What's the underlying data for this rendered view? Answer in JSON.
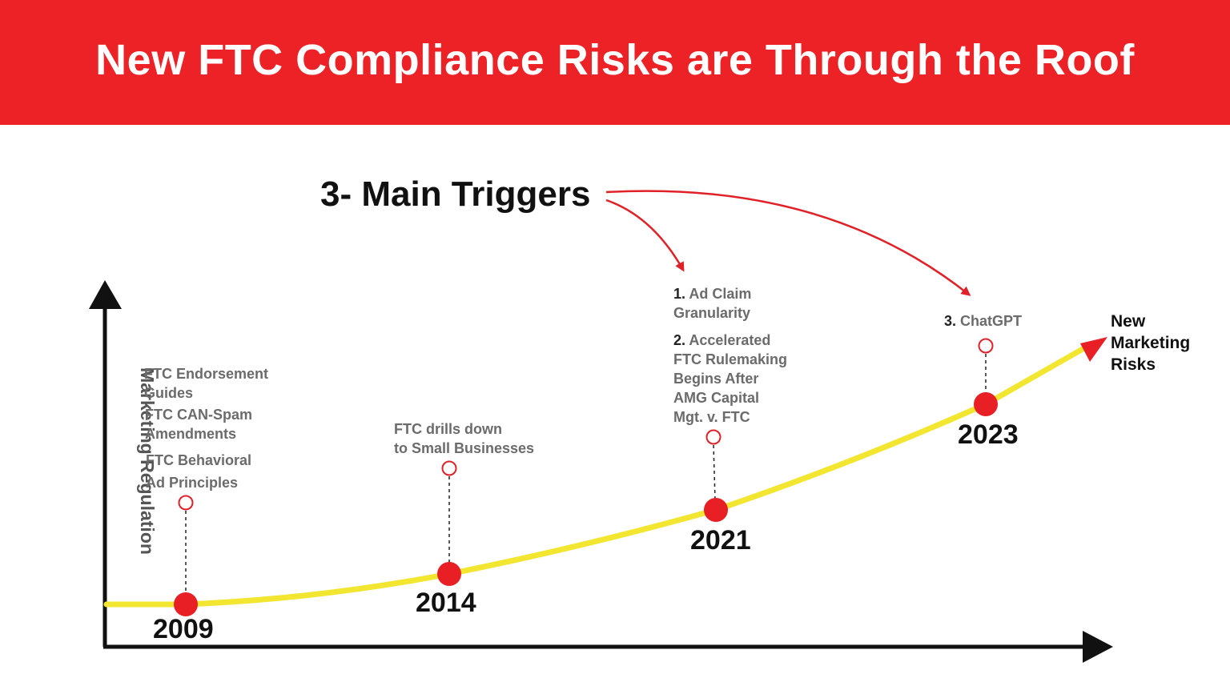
{
  "header": {
    "title": "New FTC Compliance Risks are Through the Roof",
    "color": "#ec2227"
  },
  "triggers": {
    "heading": "3- Main Triggers"
  },
  "y_axis": {
    "label": "Marketing Regulation"
  },
  "curve": {
    "end_label": [
      "New",
      "Marketing",
      "Risks"
    ],
    "color": "#f2e630",
    "marker_color": "#e81f25"
  },
  "milestones": [
    {
      "year": "2009",
      "notes": [
        "FTC Endorsement",
        "Guides",
        "FTC CAN-Spam",
        "Amendments",
        "FTC Behavioral",
        "Ad Principles"
      ]
    },
    {
      "year": "2014",
      "notes": [
        "FTC drills down",
        "to Small Businesses"
      ]
    },
    {
      "year": "2021",
      "notes": [
        {
          "num": "1.",
          "lines": [
            "Ad Claim",
            "Granularity"
          ]
        },
        {
          "num": "2.",
          "lines": [
            "Accelerated",
            "FTC Rulemaking",
            "Begins After",
            "AMG Capital",
            "Mgt. v. FTC"
          ]
        }
      ]
    },
    {
      "year": "2023",
      "notes": [
        {
          "num": "3.",
          "lines": [
            "ChatGPT"
          ]
        }
      ]
    }
  ]
}
